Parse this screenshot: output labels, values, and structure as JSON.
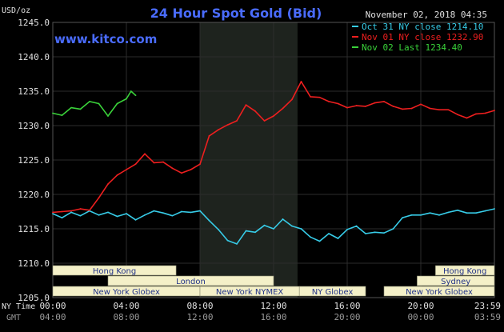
{
  "chart_data": {
    "type": "line",
    "title": "24 Hour Spot Gold (Bid)",
    "date_label": "November 02, 2018 04:35",
    "source": "www.kitco.com",
    "ylabel": "USD/oz",
    "ylim": [
      1205.0,
      1245.0
    ],
    "ytick_labels": [
      "1205.0",
      "1210.0",
      "1215.0",
      "1220.0",
      "1225.0",
      "1230.0",
      "1235.0",
      "1240.0",
      "1245.0"
    ],
    "xlim": [
      0,
      24
    ],
    "x_tick_hours": [
      0,
      4,
      8,
      12,
      16,
      20,
      24
    ],
    "x_row1_label": "NY Time",
    "x_row1_ticks": [
      "00:00",
      "04:00",
      "08:00",
      "12:00",
      "16:00",
      "20:00",
      "23:59"
    ],
    "x_row2_label": "GMT",
    "x_row2_ticks": [
      "04:00",
      "08:00",
      "12:00",
      "16:00",
      "20:00",
      "00:00",
      "03:59"
    ],
    "grid": true,
    "legend_position": "top-right",
    "highlight_hours": [
      8.0,
      13.3
    ],
    "colors": {
      "background": "#000000",
      "plot_bg": "#000000",
      "highlight_bg": "#1e231e",
      "grid": "#2c2c2c",
      "axis_text": "#e0e0e0",
      "title": "#4a6cff",
      "session_fill": "#f4f0c8",
      "session_text": "#223388"
    },
    "series": [
      {
        "name": "Oct 31 NY close 1214.10",
        "color": "#37cce8",
        "x": [
          0,
          0.5,
          1,
          1.5,
          2,
          2.5,
          3,
          3.5,
          4,
          4.5,
          5,
          5.5,
          6,
          6.5,
          7,
          7.5,
          8,
          8.5,
          9,
          9.5,
          10,
          10.5,
          11,
          11.5,
          12,
          12.5,
          13,
          13.5,
          14,
          14.5,
          15,
          15.5,
          16,
          16.5,
          17,
          17.5,
          18,
          18.5,
          19,
          19.5,
          20,
          20.5,
          21,
          21.5,
          22,
          22.5,
          23,
          23.5,
          24
        ],
        "values": [
          1217.2,
          1216.6,
          1217.4,
          1216.9,
          1217.6,
          1217.0,
          1217.4,
          1216.8,
          1217.2,
          1216.3,
          1217.0,
          1217.6,
          1217.3,
          1216.9,
          1217.5,
          1217.4,
          1217.6,
          1216.2,
          1214.9,
          1213.3,
          1212.8,
          1214.7,
          1214.5,
          1215.5,
          1215.0,
          1216.4,
          1215.4,
          1215.0,
          1213.8,
          1213.2,
          1214.3,
          1213.6,
          1214.9,
          1215.4,
          1214.3,
          1214.5,
          1214.4,
          1215.0,
          1216.6,
          1217.0,
          1217.0,
          1217.3,
          1217.0,
          1217.4,
          1217.7,
          1217.3,
          1217.3,
          1217.6,
          1217.9
        ]
      },
      {
        "name": "Nov 01 NY close 1232.90",
        "color": "#ee1f1f",
        "x": [
          0,
          0.5,
          1,
          1.5,
          2,
          2.5,
          3,
          3.5,
          4,
          4.5,
          5,
          5.5,
          6,
          6.5,
          7,
          7.5,
          8,
          8.5,
          9,
          9.5,
          10,
          10.5,
          11,
          11.5,
          12,
          12.5,
          13,
          13.5,
          14,
          14.5,
          15,
          15.5,
          16,
          16.5,
          17,
          17.5,
          18,
          18.5,
          19,
          19.5,
          20,
          20.5,
          21,
          21.5,
          22,
          22.5,
          23,
          23.5,
          24
        ],
        "values": [
          1217.4,
          1217.5,
          1217.6,
          1217.9,
          1217.7,
          1219.5,
          1221.5,
          1222.8,
          1223.6,
          1224.4,
          1225.9,
          1224.6,
          1224.7,
          1223.8,
          1223.1,
          1223.6,
          1224.4,
          1228.5,
          1229.4,
          1230.1,
          1230.7,
          1233.0,
          1232.1,
          1230.7,
          1231.4,
          1232.5,
          1233.8,
          1236.4,
          1234.2,
          1234.1,
          1233.5,
          1233.2,
          1232.6,
          1232.9,
          1232.8,
          1233.3,
          1233.5,
          1232.8,
          1232.4,
          1232.5,
          1233.1,
          1232.5,
          1232.3,
          1232.3,
          1231.6,
          1231.1,
          1231.7,
          1231.8,
          1232.2
        ]
      },
      {
        "name": "Nov 02 Last 1234.40",
        "color": "#3ad23a",
        "x": [
          0,
          0.5,
          1,
          1.5,
          2,
          2.5,
          3,
          3.5,
          4,
          4.25,
          4.5
        ],
        "values": [
          1231.8,
          1231.5,
          1232.6,
          1232.4,
          1233.5,
          1233.2,
          1231.4,
          1233.2,
          1233.9,
          1235.0,
          1234.4
        ]
      }
    ],
    "sessions": [
      {
        "label": "Hong Kong",
        "start": 0.0,
        "end": 6.7,
        "row": 1
      },
      {
        "label": "London",
        "start": 3.0,
        "end": 12.0,
        "row": 2
      },
      {
        "label": "New York Globex",
        "start": 0.0,
        "end": 8.0,
        "row": 3
      },
      {
        "label": "New York NYMEX",
        "start": 8.0,
        "end": 13.4,
        "row": 3
      },
      {
        "label": "NY Globex",
        "start": 13.4,
        "end": 17.0,
        "row": 3
      },
      {
        "label": "Hong Kong",
        "start": 20.8,
        "end": 24.0,
        "row": 1
      },
      {
        "label": "Sydney",
        "start": 19.8,
        "end": 24.0,
        "row": 2
      },
      {
        "label": "New York Globex",
        "start": 18.0,
        "end": 24.0,
        "row": 3
      }
    ]
  }
}
